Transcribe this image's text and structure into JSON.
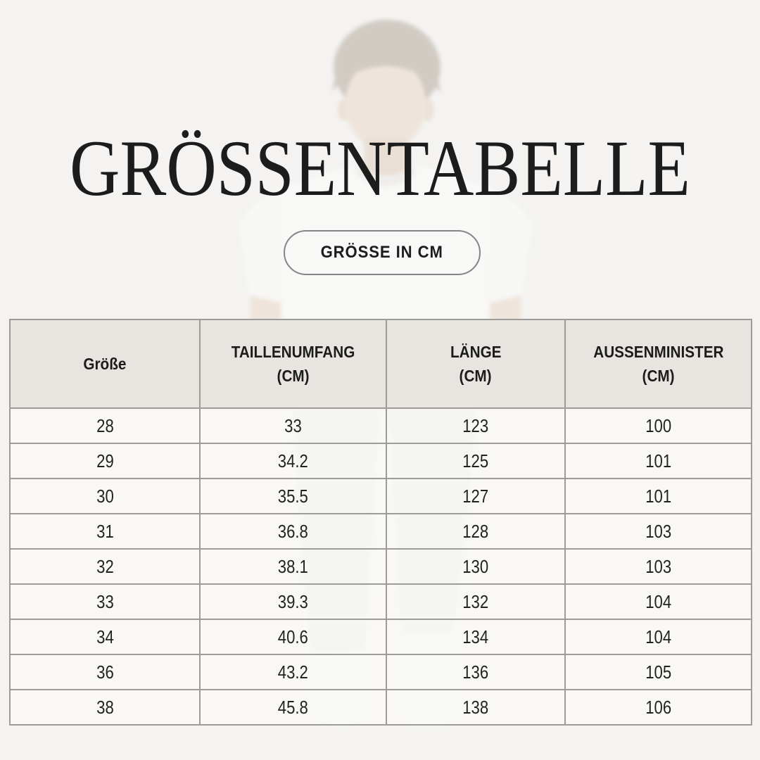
{
  "page": {
    "title": "GRÖSSENTABELLE",
    "badge": "GRÖSSE IN CM",
    "background_image": "faded-male-model-in-white-tshirt-and-light-trousers"
  },
  "table": {
    "columns": [
      {
        "label": "Größe",
        "unit": ""
      },
      {
        "label": "TAILLENUMFANG",
        "unit": "(CM)"
      },
      {
        "label": "LÄNGE",
        "unit": "(CM)"
      },
      {
        "label": "AUSSENMINISTER",
        "unit": "(CM)"
      }
    ],
    "rows": [
      [
        "28",
        "33",
        "123",
        "100"
      ],
      [
        "29",
        "34.2",
        "125",
        "101"
      ],
      [
        "30",
        "35.5",
        "127",
        "101"
      ],
      [
        "31",
        "36.8",
        "128",
        "103"
      ],
      [
        "32",
        "38.1",
        "130",
        "103"
      ],
      [
        "33",
        "39.3",
        "132",
        "104"
      ],
      [
        "34",
        "40.6",
        "134",
        "104"
      ],
      [
        "36",
        "43.2",
        "136",
        "105"
      ],
      [
        "38",
        "45.8",
        "138",
        "106"
      ]
    ]
  },
  "colors": {
    "bg": "#f4f3f1",
    "ink": "#1c1c1c",
    "header-bg": "#e8e5e1",
    "border": "#9e9c99",
    "border-strong": "#8d8d8d",
    "badge-border": "#858585"
  }
}
